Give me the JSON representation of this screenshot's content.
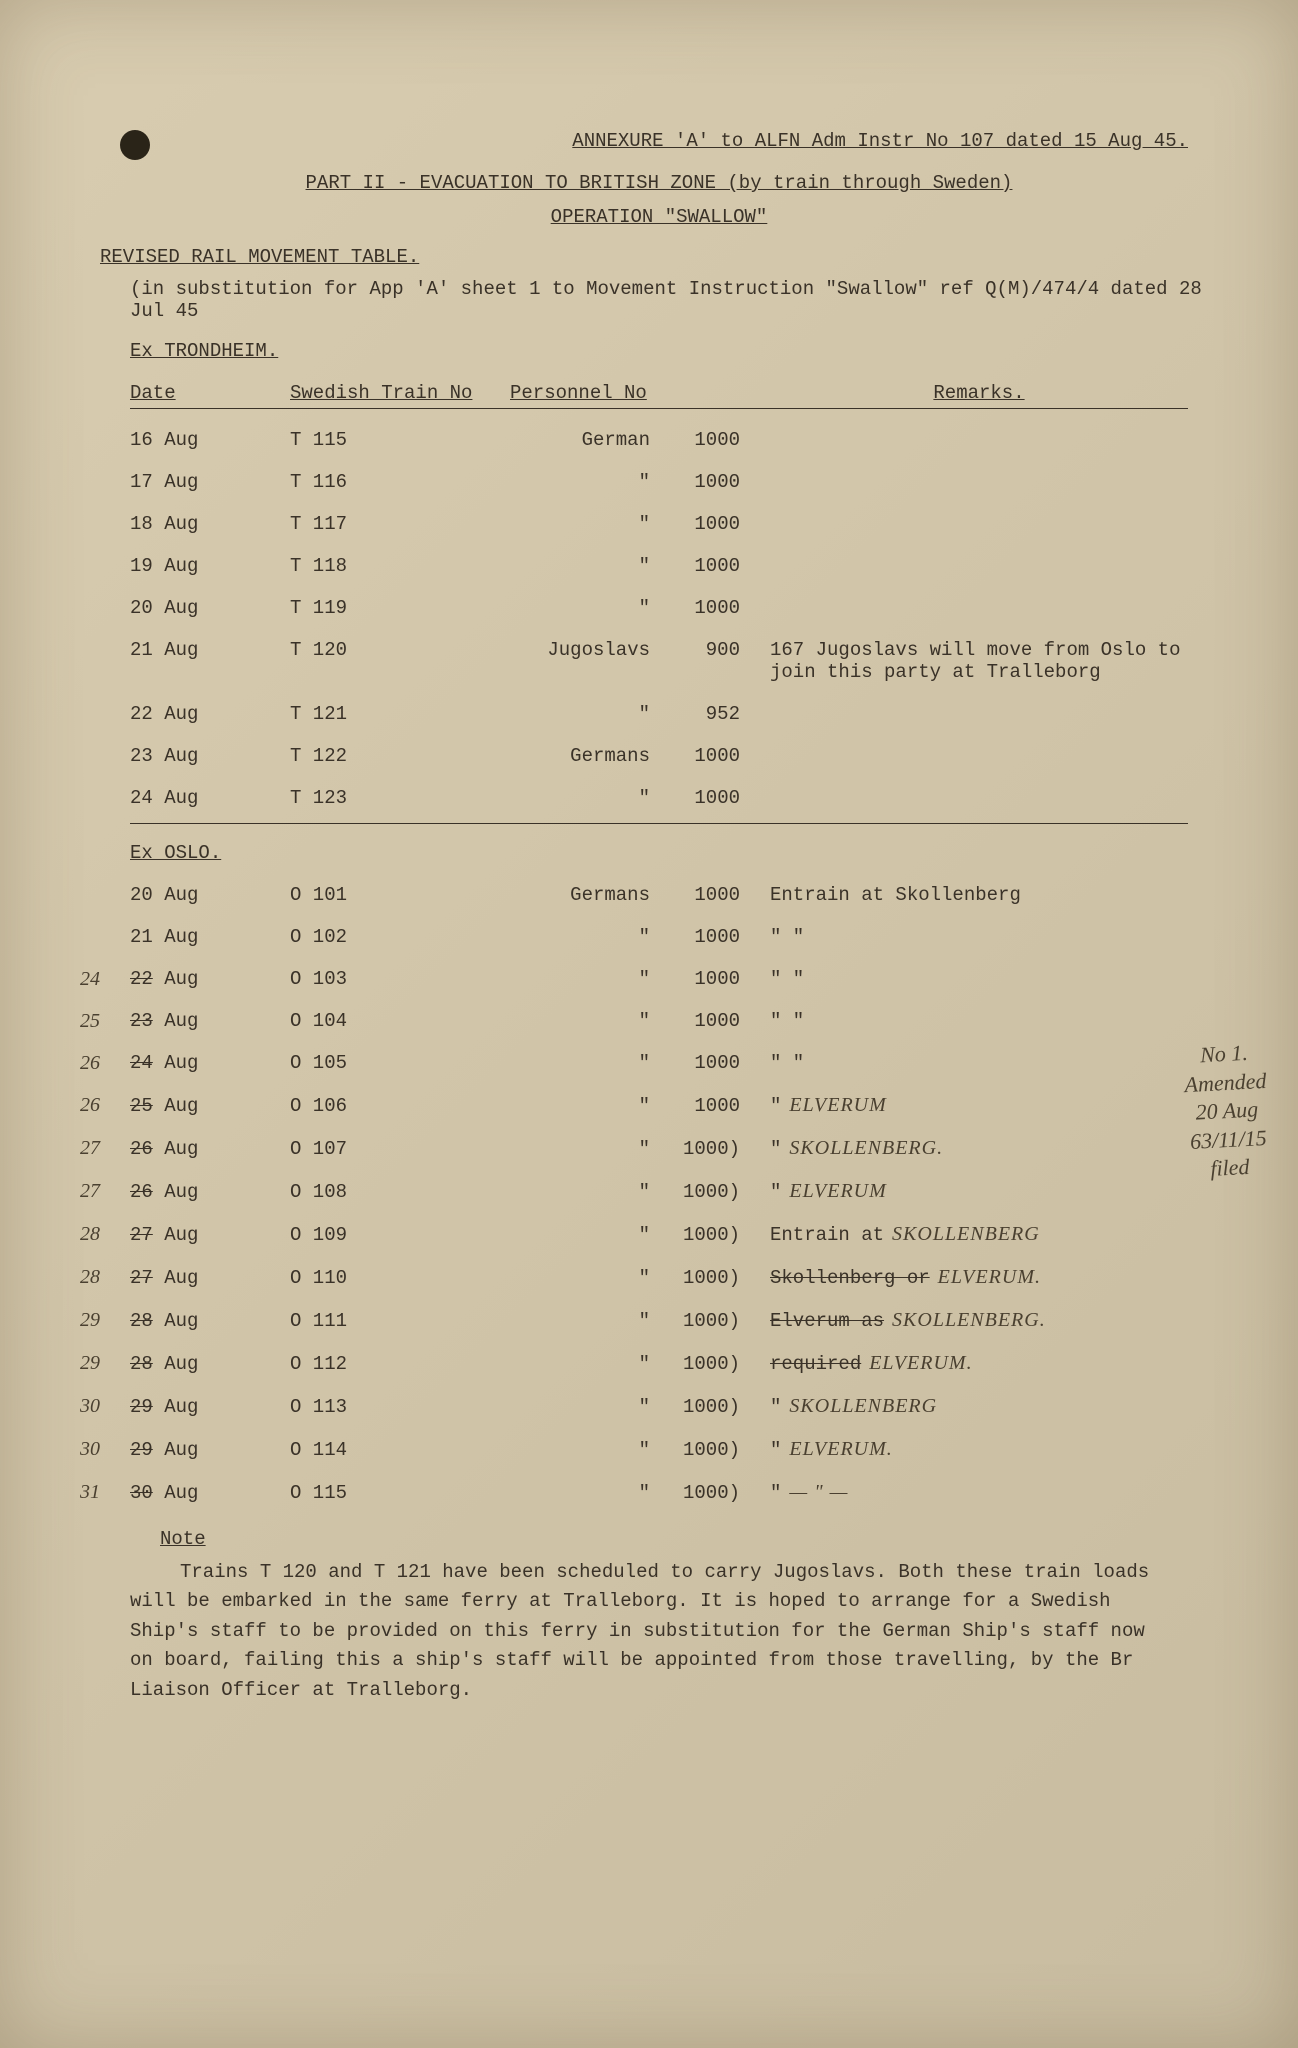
{
  "header": {
    "annexure": "ANNEXURE 'A' to ALFN Adm Instr No 107 dated 15 Aug 45.",
    "part_title": "PART II - EVACUATION TO BRITISH ZONE (by train through Sweden)",
    "operation": "OPERATION \"SWALLOW\"",
    "revised": "REVISED RAIL MOVEMENT TABLE.",
    "substitution": "(in substitution for App 'A' sheet 1 to Movement Instruction \"Swallow\" ref Q(M)/474/4 dated 28 Jul 45"
  },
  "sections": {
    "trondheim": "Ex TRONDHEIM.",
    "oslo": "Ex OSLO."
  },
  "columns": {
    "date": "Date",
    "train": "Swedish Train No",
    "personnel": "Personnel No",
    "remarks": "Remarks."
  },
  "trondheim_rows": [
    {
      "date": "16 Aug",
      "train": "T 115",
      "pers_label": "German",
      "pers_num": "1000",
      "remarks": ""
    },
    {
      "date": "17 Aug",
      "train": "T 116",
      "pers_label": "\"",
      "pers_num": "1000",
      "remarks": ""
    },
    {
      "date": "18 Aug",
      "train": "T 117",
      "pers_label": "\"",
      "pers_num": "1000",
      "remarks": ""
    },
    {
      "date": "19 Aug",
      "train": "T 118",
      "pers_label": "\"",
      "pers_num": "1000",
      "remarks": ""
    },
    {
      "date": "20 Aug",
      "train": "T 119",
      "pers_label": "\"",
      "pers_num": "1000",
      "remarks": ""
    },
    {
      "date": "21 Aug",
      "train": "T 120",
      "pers_label": "Jugoslavs",
      "pers_num": "900",
      "remarks": "167 Jugoslavs will move from Oslo to join this party at Tralleborg"
    },
    {
      "date": "22 Aug",
      "train": "T 121",
      "pers_label": "\"",
      "pers_num": "952",
      "remarks": ""
    },
    {
      "date": "23 Aug",
      "train": "T 122",
      "pers_label": "Germans",
      "pers_num": "1000",
      "remarks": ""
    },
    {
      "date": "24 Aug",
      "train": "T 123",
      "pers_label": "\"",
      "pers_num": "1000",
      "remarks": ""
    }
  ],
  "oslo_rows": [
    {
      "hand_left": "",
      "date": "20 Aug",
      "train": "O 101",
      "pers_label": "Germans",
      "pers_num": "1000",
      "remarks_typed": "Entrain at Skollenberg",
      "remarks_hand": ""
    },
    {
      "hand_left": "",
      "date": "21 Aug",
      "train": "O 102",
      "pers_label": "\"",
      "pers_num": "1000",
      "remarks_typed": "\"           \"",
      "remarks_hand": ""
    },
    {
      "hand_left": "24",
      "date_strike": "22",
      "date": " Aug",
      "train": "O 103",
      "pers_label": "\"",
      "pers_num": "1000",
      "remarks_typed": "\"           \"",
      "remarks_hand": ""
    },
    {
      "hand_left": "25",
      "date_strike": "23",
      "date": " Aug",
      "train": "O 104",
      "pers_label": "\"",
      "pers_num": "1000",
      "remarks_typed": "\"           \"",
      "remarks_hand": ""
    },
    {
      "hand_left": "26",
      "date_strike": "24",
      "date": " Aug",
      "train": "O 105",
      "pers_label": "\"",
      "pers_num": "1000",
      "remarks_typed": "\"           \"",
      "remarks_hand": ""
    },
    {
      "hand_left": "26",
      "date_strike": "25",
      "date": " Aug",
      "train": "O 106",
      "pers_label": "\"",
      "pers_num": "1000",
      "remarks_typed": "\"",
      "remarks_hand": "ELVERUM"
    },
    {
      "hand_left": "27",
      "date_strike": "26",
      "date": " Aug",
      "train": "O 107",
      "pers_label": "\"",
      "pers_num": "1000)",
      "remarks_typed": "\"",
      "remarks_hand": "SKOLLENBERG."
    },
    {
      "hand_left": "27",
      "date_strike": "26",
      "date": " Aug",
      "train": "O 108",
      "pers_label": "\"",
      "pers_num": "1000)",
      "remarks_typed": "\"",
      "remarks_hand": "ELVERUM"
    },
    {
      "hand_left": "28",
      "date_strike": "27",
      "date": " Aug",
      "train": "O 109",
      "pers_label": "\"",
      "pers_num": "1000)",
      "remarks_typed": "Entrain at",
      "remarks_hand": "SKOLLENBERG"
    },
    {
      "hand_left": "28",
      "date_strike": "27",
      "date": " Aug",
      "train": "O 110",
      "pers_label": "\"",
      "pers_num": "1000)",
      "remarks_typed_strike": "Skollenberg or",
      "remarks_hand": "ELVERUM."
    },
    {
      "hand_left": "29",
      "date_strike": "28",
      "date": " Aug",
      "train": "O 111",
      "pers_label": "\"",
      "pers_num": "1000)",
      "remarks_typed_strike": "Elverum as",
      "remarks_hand": "SKOLLENBERG."
    },
    {
      "hand_left": "29",
      "date_strike": "28",
      "date": " Aug",
      "train": "O 112",
      "pers_label": "\"",
      "pers_num": "1000)",
      "remarks_typed_strike": "required",
      "remarks_hand": "ELVERUM."
    },
    {
      "hand_left": "30",
      "date_strike": "29",
      "date": " Aug",
      "train": "O 113",
      "pers_label": "\"",
      "pers_num": "1000)",
      "remarks_typed": "\"",
      "remarks_hand": "SKOLLENBERG"
    },
    {
      "hand_left": "30",
      "date_strike": "29",
      "date": " Aug",
      "train": "O 114",
      "pers_label": "\"",
      "pers_num": "1000)",
      "remarks_typed": "\"",
      "remarks_hand": "ELVERUM."
    },
    {
      "hand_left": "31",
      "date_strike": "30",
      "date": " Aug",
      "train": "O 115",
      "pers_label": "\"",
      "pers_num": "1000)",
      "remarks_typed": "\"",
      "remarks_hand": "— \" —"
    }
  ],
  "margin_note": "No 1.\nAmended\n20 Aug\n63/11/15\nfiled",
  "note": {
    "head": "Note",
    "body": "Trains T 120 and T 121 have been scheduled to carry Jugoslavs. Both these train loads will be embarked in the same ferry at Tralleborg. It is hoped to arrange for a Swedish Ship's staff to be provided on this ferry in substitution for the German Ship's staff now on board, failing this a ship's staff will be appointed from those travelling, by the Br Liaison Officer at Tralleborg."
  }
}
